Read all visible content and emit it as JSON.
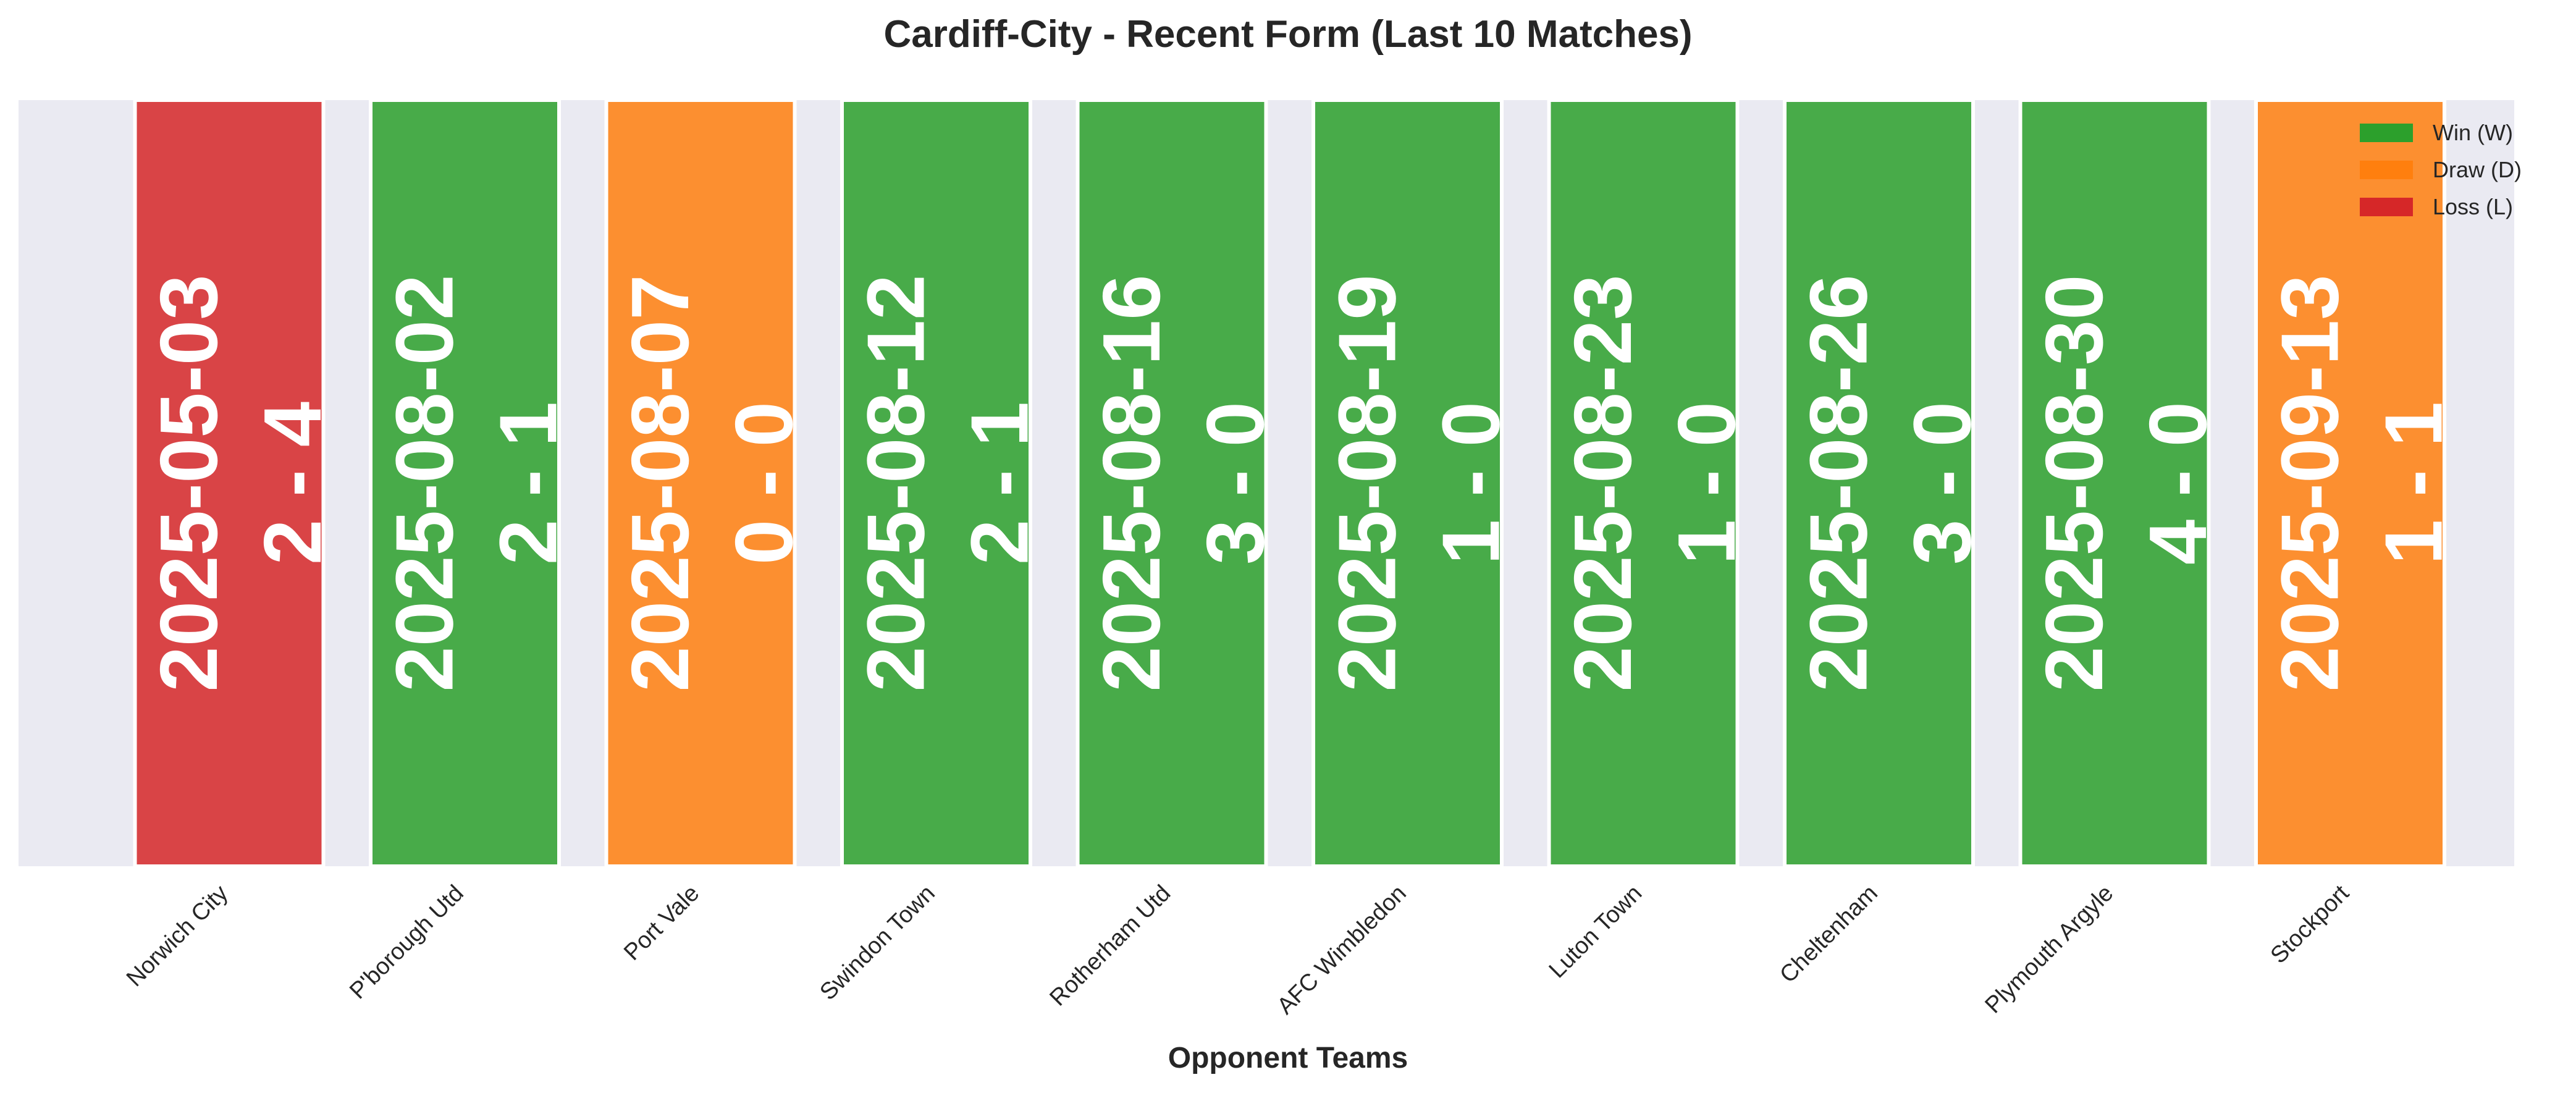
{
  "chart_data": {
    "type": "bar",
    "title": "Cardiff-City - Recent Form (Last 10 Matches)",
    "xlabel": "Opponent Teams",
    "ylabel": "",
    "categories": [
      "Norwich City",
      "P'borough Utd",
      "Port Vale",
      "Swindon Town",
      "Rotherham Utd",
      "AFC Wimbledon",
      "Luton Town",
      "Cheltenham",
      "Plymouth Argyle",
      "Stockport"
    ],
    "values": [
      1,
      1,
      1,
      1,
      1,
      1,
      1,
      1,
      1,
      1
    ],
    "results": [
      "L",
      "W",
      "D",
      "W",
      "W",
      "W",
      "W",
      "W",
      "W",
      "D"
    ],
    "dates": [
      "2025-05-03",
      "2025-08-02",
      "2025-08-07",
      "2025-08-12",
      "2025-08-16",
      "2025-08-19",
      "2025-08-23",
      "2025-08-26",
      "2025-08-30",
      "2025-09-13"
    ],
    "scores": [
      "2 - 4",
      "2 - 1",
      "0 - 0",
      "2 - 1",
      "3 - 0",
      "1 - 0",
      "1 - 0",
      "3 - 0",
      "4 - 0",
      "1 - 1"
    ],
    "ylim": [
      0,
      1
    ],
    "grid": false,
    "legend_position": "top-right",
    "legend": [
      {
        "label": "Win (W)",
        "result": "W"
      },
      {
        "label": "Draw (D)",
        "result": "D"
      },
      {
        "label": "Loss (L)",
        "result": "L"
      }
    ],
    "colors": {
      "W": "#2ca02c",
      "D": "#ff7f0e",
      "L": "#d62728",
      "background": "#eaeaf2"
    }
  }
}
